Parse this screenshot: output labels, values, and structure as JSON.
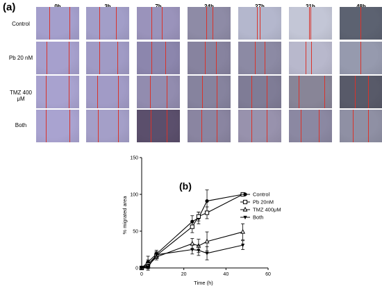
{
  "panel_a_label": "(a)",
  "panel_b_label": "(b)",
  "time_points": [
    "0h",
    "3h",
    "7h",
    "24h",
    "27h",
    "31h",
    "48h"
  ],
  "rows": [
    {
      "label": "Control",
      "tones": [
        "#a49fcc",
        "#a29ec8",
        "#9a93bb",
        "#8e8ba6",
        "#b4b7cd",
        "#c3c6d6",
        "#5c6271"
      ]
    },
    {
      "label": "Pb 20 nM",
      "tones": [
        "#a6a0cd",
        "#a09bc5",
        "#8c86ad",
        "#87839f",
        "#8c8aa4",
        "#b8b8cc",
        "#969aae"
      ]
    },
    {
      "label": "TMZ 400 μM",
      "tones": [
        "#a8a2cf",
        "#a19bc6",
        "#928caf",
        "#86839e",
        "#7f7c96",
        "#888597",
        "#585a69"
      ]
    },
    {
      "label": "Both",
      "tones": [
        "#a9a3d0",
        "#a49fc8",
        "#5b4f6c",
        "#8a85a1",
        "#9892ad",
        "#8b88a2",
        "#8f90a4"
      ]
    }
  ],
  "scratch_lines": [
    [
      [
        0.3,
        0.78
      ],
      [
        0.3,
        0.7
      ],
      [
        0.34,
        0.58
      ],
      [
        0.44,
        0.58
      ],
      [
        0.44,
        0.5
      ],
      [
        0.46,
        0.5
      ],
      [
        0.48,
        0.48
      ]
    ],
    [
      [
        0.24,
        0.76
      ],
      [
        0.3,
        0.72
      ],
      [
        0.34,
        0.66
      ],
      [
        0.4,
        0.66
      ],
      [
        0.38,
        0.62
      ],
      [
        0.38,
        0.52
      ],
      [
        0.48,
        0.48
      ]
    ],
    [
      [
        0.22,
        0.76
      ],
      [
        0.26,
        0.74
      ],
      [
        0.3,
        0.7
      ],
      [
        0.34,
        0.68
      ],
      [
        0.3,
        0.66
      ],
      [
        0.22,
        0.82
      ],
      [
        0.36,
        0.66
      ]
    ],
    [
      [
        0.22,
        0.78
      ],
      [
        0.28,
        0.74
      ],
      [
        0.32,
        0.7
      ],
      [
        0.32,
        0.68
      ],
      [
        0.3,
        0.66
      ],
      [
        0.28,
        0.7
      ],
      [
        0.3,
        0.66
      ]
    ]
  ],
  "chart_data": {
    "type": "line",
    "title": "",
    "xlabel": "Time (h)",
    "ylabel": "% migrated area",
    "xlim": [
      0,
      60
    ],
    "ylim": [
      0,
      150
    ],
    "xticks": [
      0,
      20,
      40,
      60
    ],
    "yticks": [
      0,
      50,
      100,
      150
    ],
    "legend_position": "right",
    "series": [
      {
        "name": "Control",
        "marker": "circle-filled",
        "x": [
          0,
          3,
          7,
          24,
          27,
          31,
          48
        ],
        "y": [
          0,
          8,
          19,
          63,
          68,
          91,
          100
        ],
        "err": [
          0,
          8,
          5,
          8,
          8,
          15,
          0
        ]
      },
      {
        "name": "Pb 20nM",
        "marker": "square-open",
        "x": [
          0,
          3,
          7,
          24,
          27,
          31,
          48
        ],
        "y": [
          0,
          5,
          17,
          56,
          70,
          75,
          100
        ],
        "err": [
          0,
          6,
          4,
          8,
          6,
          8,
          0
        ]
      },
      {
        "name": "TMZ 400μM",
        "marker": "triangle-open",
        "x": [
          0,
          3,
          7,
          24,
          27,
          31,
          48
        ],
        "y": [
          0,
          3,
          15,
          33,
          30,
          36,
          49
        ],
        "err": [
          0,
          4,
          4,
          7,
          9,
          13,
          11
        ]
      },
      {
        "name": "Both",
        "marker": "triangle-filled",
        "x": [
          0,
          3,
          7,
          24,
          27,
          31,
          48
        ],
        "y": [
          0,
          1,
          18,
          25,
          24,
          20,
          31
        ],
        "err": [
          0,
          4,
          4,
          6,
          7,
          9,
          6
        ]
      }
    ]
  }
}
